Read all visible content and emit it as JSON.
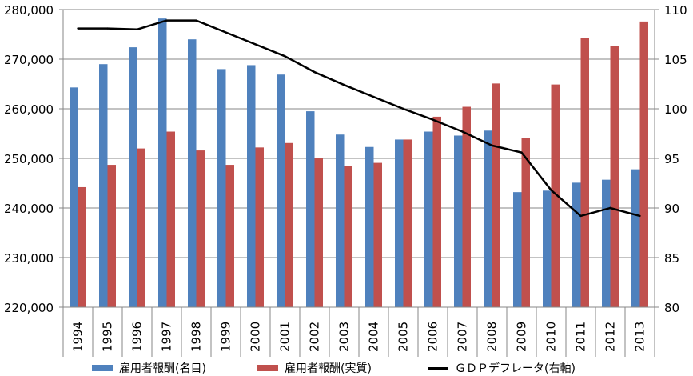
{
  "chart_data": {
    "type": "bar",
    "categories": [
      "1994",
      "1995",
      "1996",
      "1997",
      "1998",
      "1999",
      "2000",
      "2001",
      "2002",
      "2003",
      "2004",
      "2005",
      "2006",
      "2007",
      "2008",
      "2009",
      "2010",
      "2011",
      "2012",
      "2013"
    ],
    "series": [
      {
        "name": "雇用者報酬(名目)",
        "type": "bar",
        "axis": "left",
        "color": "#4F81BD",
        "values": [
          264300,
          269000,
          272400,
          278200,
          274000,
          268000,
          268800,
          266900,
          259500,
          254800,
          252300,
          253800,
          255400,
          254600,
          255600,
          243200,
          243500,
          245100,
          245700,
          247800
        ]
      },
      {
        "name": "雇用者報酬(実質)",
        "type": "bar",
        "axis": "left",
        "color": "#C0504D",
        "values": [
          244200,
          248700,
          252000,
          255400,
          251600,
          248700,
          252200,
          253100,
          250000,
          248500,
          249100,
          253800,
          258400,
          260400,
          265100,
          254100,
          264900,
          274300,
          272700,
          277600
        ]
      },
      {
        "name": "ＧＤＰデフレータ(右軸)",
        "type": "line",
        "axis": "right",
        "color": "#000000",
        "values": [
          108.1,
          108.1,
          108.0,
          108.9,
          108.9,
          107.7,
          106.5,
          105.3,
          103.7,
          102.4,
          101.2,
          100.0,
          98.9,
          97.7,
          96.3,
          95.6,
          91.8,
          89.2,
          90.0,
          89.2
        ]
      }
    ],
    "y_left": {
      "min": 220000,
      "max": 280000,
      "step": 10000,
      "ticks": [
        "220,000",
        "230,000",
        "240,000",
        "250,000",
        "260,000",
        "270,000",
        "280,000"
      ]
    },
    "y_right": {
      "min": 80,
      "max": 110,
      "step": 5,
      "ticks": [
        "80",
        "85",
        "90",
        "95",
        "100",
        "105",
        "110"
      ]
    },
    "grid": true,
    "legend": "bottom"
  }
}
